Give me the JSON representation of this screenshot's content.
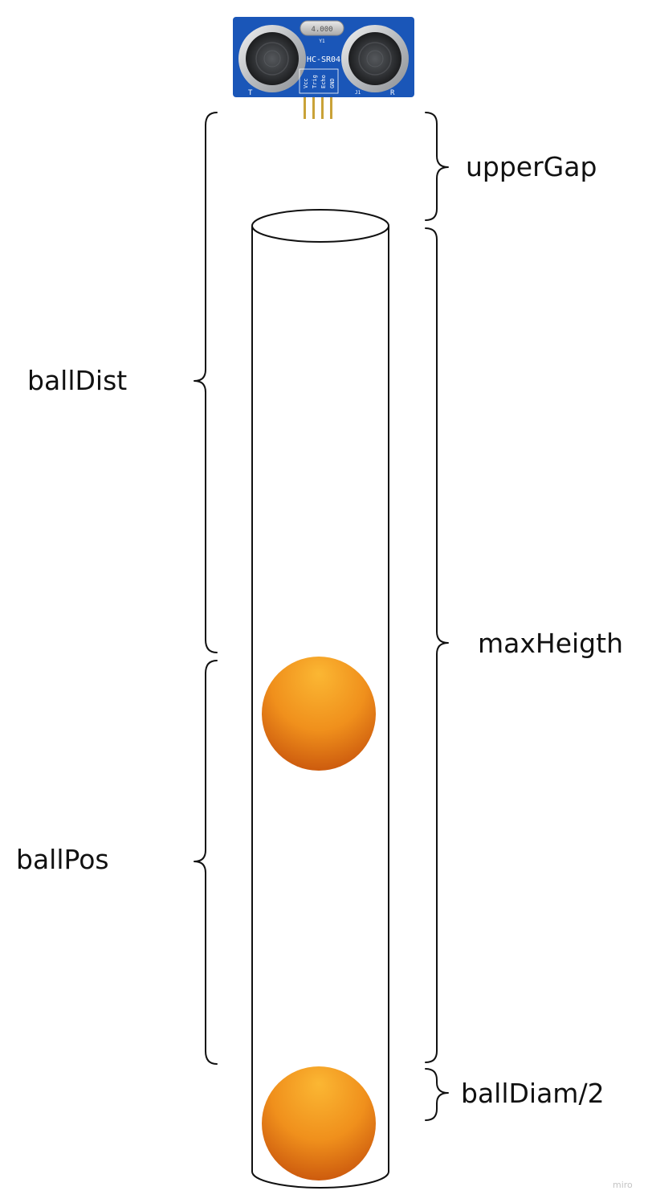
{
  "labels": {
    "upper_gap": "upperGap",
    "ball_dist": "ballDist",
    "max_height": "maxHeigth",
    "ball_pos": "ballPos",
    "ball_half_diameter": "ballDiam/2"
  },
  "sensor": {
    "model": "HC-SR04",
    "crystal_marking": "4.000",
    "crystal_ref": "Y1",
    "header_ref": "J1",
    "transmitter_mark": "T",
    "receiver_mark": "R",
    "pins": [
      "Vcc",
      "Trig",
      "Echo",
      "GND"
    ]
  },
  "watermark": "miro",
  "colors": {
    "ball_light": "#fbb733",
    "ball_mid": "#f0901c",
    "ball_dark": "#c8540c",
    "board": "#1a56b8",
    "tube_outline": "#111111"
  }
}
